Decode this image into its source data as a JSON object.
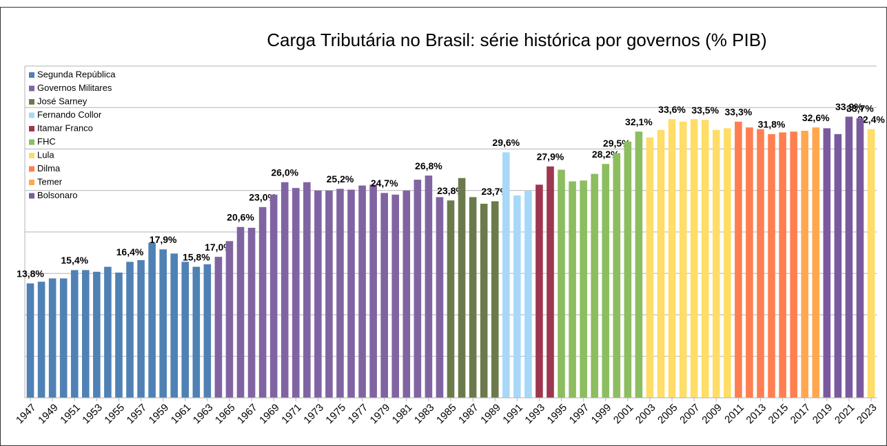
{
  "chart_data": {
    "type": "bar",
    "title": "Carga Tributária no Brasil: série histórica por governos (% PIB)",
    "xlim": [
      1946.5,
      2023.5
    ],
    "xticks": [
      1947,
      1949,
      1951,
      1953,
      1955,
      1957,
      1959,
      1961,
      1963,
      1965,
      1967,
      1969,
      1971,
      1973,
      1975,
      1977,
      1979,
      1981,
      1983,
      1985,
      1987,
      1989,
      1991,
      1993,
      1995,
      1997,
      1999,
      2001,
      2003,
      2005,
      2007,
      2009,
      2011,
      2013,
      2015,
      2017,
      2019,
      2021,
      2023
    ],
    "ylim": [
      0,
      40
    ],
    "yticks": [
      0,
      5,
      10,
      15,
      20,
      25,
      30,
      35,
      40
    ],
    "grid": true,
    "legend": "upper left",
    "series": [
      {
        "name": "Segunda República",
        "color": "#4f81b5",
        "x": [
          1947,
          1948,
          1949,
          1950,
          1951,
          1952,
          1953,
          1954,
          1955,
          1956,
          1957,
          1958,
          1959,
          1960,
          1961,
          1962,
          1963
        ],
        "values": [
          13.8,
          14.0,
          14.4,
          14.4,
          15.4,
          15.4,
          15.2,
          15.8,
          15.1,
          16.4,
          16.6,
          18.7,
          17.9,
          17.4,
          16.4,
          15.8,
          16.1
        ],
        "value_labels": [
          "13,8%",
          null,
          null,
          null,
          "15,4%",
          null,
          null,
          null,
          null,
          "16,4%",
          null,
          null,
          "17,9%",
          null,
          null,
          "15,8%",
          null
        ]
      },
      {
        "name": "Governos Militares",
        "color": "#8064a2",
        "x": [
          1964,
          1965,
          1966,
          1967,
          1968,
          1969,
          1970,
          1971,
          1972,
          1973,
          1974,
          1975,
          1976,
          1977,
          1978,
          1979,
          1980,
          1981,
          1982,
          1983,
          1984
        ],
        "values": [
          17.0,
          18.9,
          20.6,
          20.5,
          23.0,
          24.5,
          26.0,
          25.3,
          26.0,
          25.0,
          25.0,
          25.2,
          25.1,
          25.6,
          25.7,
          24.7,
          24.5,
          25.0,
          26.3,
          26.8,
          24.2
        ],
        "value_labels": [
          "17,0%",
          null,
          "20,6%",
          null,
          "23,0%",
          null,
          "26,0%",
          null,
          null,
          null,
          null,
          "25,2%",
          null,
          null,
          null,
          "24,7%",
          null,
          null,
          null,
          "26,8%",
          null
        ]
      },
      {
        "name": "José Sarney",
        "color": "#6b7a4a",
        "x": [
          1985,
          1986,
          1987,
          1988,
          1989
        ],
        "values": [
          23.8,
          26.5,
          24.2,
          23.4,
          23.7
        ],
        "value_labels": [
          "23,8%",
          null,
          null,
          null,
          "23,7%"
        ]
      },
      {
        "name": "Fernando Collor",
        "color": "#a8d8f8",
        "x": [
          1990,
          1991,
          1992
        ],
        "values": [
          29.6,
          24.4,
          25.0
        ],
        "value_labels": [
          "29,6%",
          null,
          null
        ]
      },
      {
        "name": "Itamar Franco",
        "color": "#9e3650",
        "x": [
          1993,
          1994
        ],
        "values": [
          25.7,
          27.9
        ],
        "value_labels": [
          null,
          "27,9%"
        ]
      },
      {
        "name": "FHC",
        "color": "#8cbd5f",
        "x": [
          1995,
          1996,
          1997,
          1998,
          1999,
          2000,
          2001,
          2002
        ],
        "values": [
          27.5,
          26.1,
          26.2,
          27.0,
          28.2,
          29.5,
          30.9,
          32.1
        ],
        "value_labels": [
          null,
          null,
          null,
          null,
          "28,2%",
          "29,5%",
          null,
          "32,1%"
        ]
      },
      {
        "name": "Lula",
        "color": "#ffdd66",
        "x": [
          2003,
          2004,
          2005,
          2006,
          2007,
          2008,
          2009,
          2010,
          2023
        ],
        "values": [
          31.4,
          32.3,
          33.6,
          33.3,
          33.6,
          33.5,
          32.3,
          32.5,
          32.4
        ],
        "value_labels": [
          null,
          null,
          "33,6%",
          null,
          null,
          "33,5%",
          null,
          null,
          "32,4%"
        ]
      },
      {
        "name": "Dilma",
        "color": "#ff7f50",
        "x": [
          2011,
          2012,
          2013,
          2014,
          2015,
          2016
        ],
        "values": [
          33.3,
          32.6,
          32.4,
          31.8,
          32.0,
          32.1
        ],
        "value_labels": [
          "33,3%",
          null,
          null,
          "31,8%",
          null,
          null
        ]
      },
      {
        "name": "Temer",
        "color": "#ffa74f",
        "x": [
          2017,
          2018
        ],
        "values": [
          32.2,
          32.6
        ],
        "value_labels": [
          null,
          "32,6%"
        ]
      },
      {
        "name": "Bolsonaro",
        "color": "#7a5a9e",
        "x": [
          2019,
          2020,
          2021,
          2022
        ],
        "values": [
          32.5,
          31.8,
          33.9,
          33.7
        ],
        "value_labels": [
          null,
          null,
          "33,9%",
          "33,7%"
        ]
      }
    ]
  }
}
